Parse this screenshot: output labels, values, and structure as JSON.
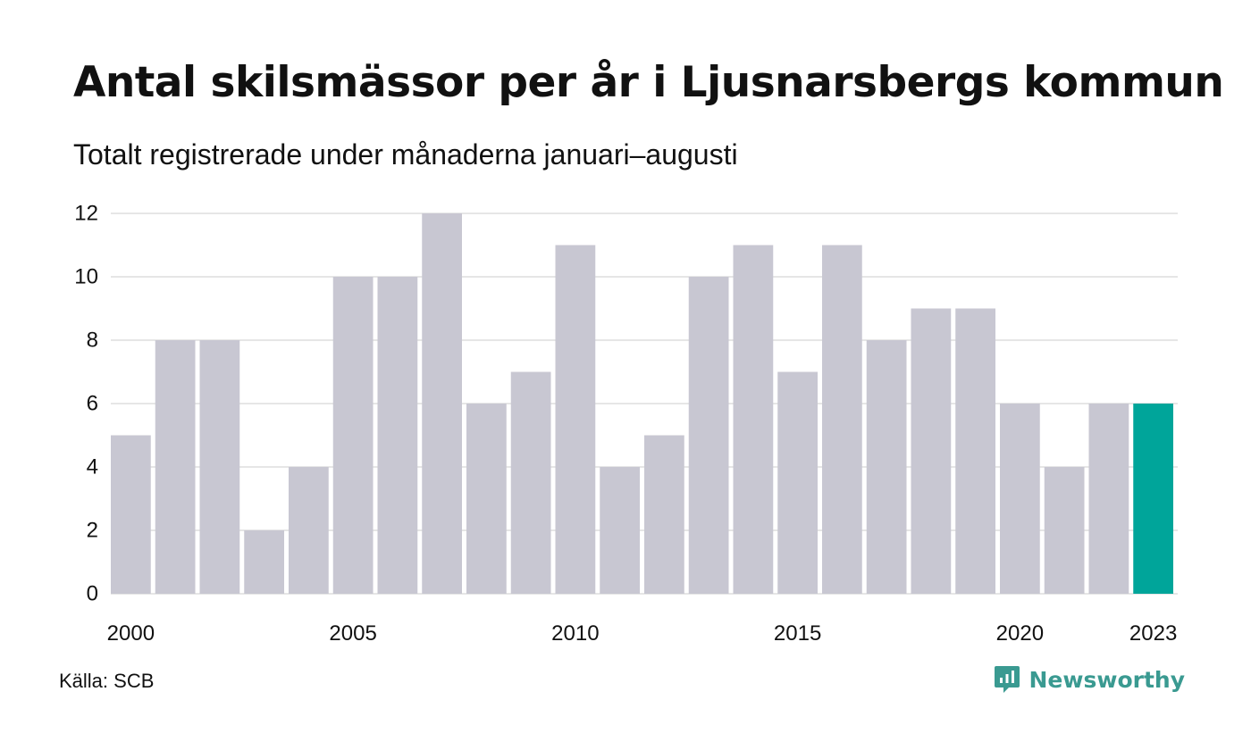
{
  "header": {
    "title": "Antal skilsmässor per år i Ljusnarsbergs kommun",
    "subtitle": "Totalt registrerade under månaderna januari–augusti"
  },
  "footer": {
    "source": "Källa: SCB",
    "brand": "Newsworthy",
    "brand_icon": "newsworthy-logo-icon"
  },
  "colors": {
    "bar": "#c8c7d2",
    "highlight": "#00a59a",
    "grid": "#e6e6e6",
    "brand": "#3a9a91"
  },
  "chart_data": {
    "type": "bar",
    "title": "Antal skilsmässor per år i Ljusnarsbergs kommun",
    "subtitle": "Totalt registrerade under månaderna januari–augusti",
    "xlabel": "",
    "ylabel": "",
    "categories": [
      2000,
      2001,
      2002,
      2003,
      2004,
      2005,
      2006,
      2007,
      2008,
      2009,
      2010,
      2011,
      2012,
      2013,
      2014,
      2015,
      2016,
      2017,
      2018,
      2019,
      2020,
      2021,
      2022,
      2023
    ],
    "values": [
      5,
      8,
      8,
      2,
      4,
      10,
      10,
      12,
      6,
      7,
      11,
      4,
      5,
      10,
      11,
      7,
      11,
      8,
      9,
      9,
      6,
      4,
      6,
      6
    ],
    "x_tick_labels": [
      "2000",
      "2005",
      "2010",
      "2015",
      "2020",
      "2023"
    ],
    "y_ticks": [
      0,
      2,
      4,
      6,
      8,
      10,
      12
    ],
    "ylim": [
      0,
      12
    ],
    "highlight_category": 2023,
    "grid": true,
    "legend": "none"
  }
}
